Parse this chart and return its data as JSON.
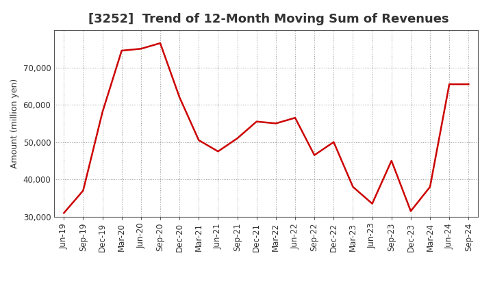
{
  "title": "[3252]  Trend of 12-Month Moving Sum of Revenues",
  "ylabel": "Amount (million yen)",
  "line_color": "#cc0000",
  "line_width": 1.8,
  "background_color": "#ffffff",
  "plot_bg_color": "#ffffff",
  "grid_color": "#999999",
  "xlabels": [
    "Jun-19",
    "Sep-19",
    "Dec-19",
    "Mar-20",
    "Jun-20",
    "Sep-20",
    "Dec-20",
    "Mar-21",
    "Jun-21",
    "Sep-21",
    "Dec-21",
    "Mar-22",
    "Jun-22",
    "Sep-22",
    "Dec-22",
    "Mar-23",
    "Jun-23",
    "Sep-23",
    "Dec-23",
    "Mar-24",
    "Jun-24",
    "Sep-24"
  ],
  "yvalues": [
    31000,
    37000,
    58000,
    74500,
    75000,
    76500,
    62000,
    50500,
    47500,
    51000,
    55500,
    55000,
    56500,
    46500,
    50000,
    38000,
    33500,
    45000,
    31500,
    38000,
    65500,
    65500
  ],
  "ylim": [
    30000,
    80000
  ],
  "yticks": [
    30000,
    40000,
    50000,
    60000,
    70000
  ],
  "title_fontsize": 13,
  "label_fontsize": 9,
  "tick_fontsize": 8.5
}
